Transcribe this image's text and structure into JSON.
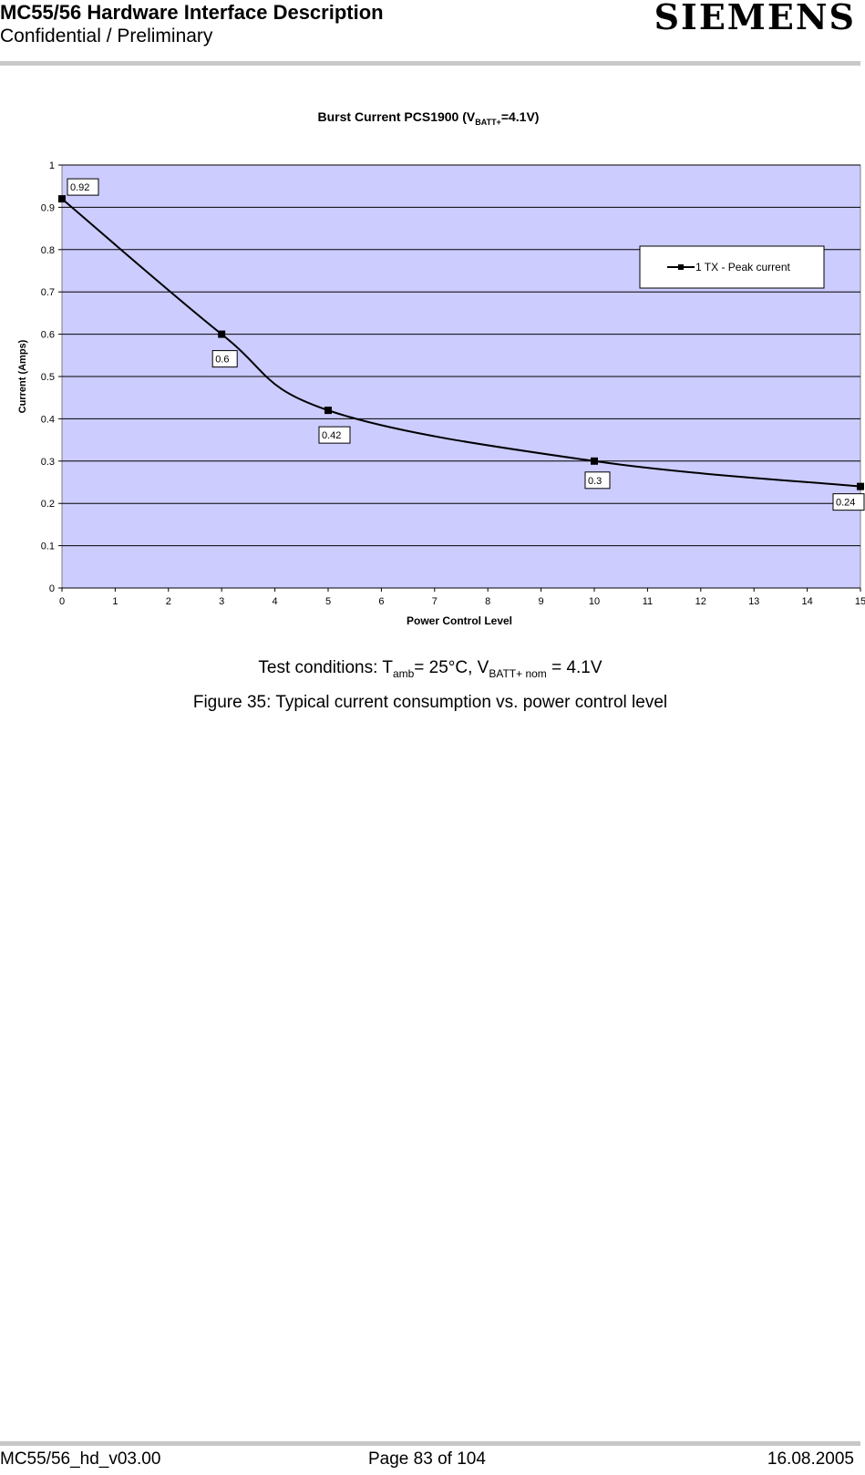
{
  "header": {
    "title": "MC55/56 Hardware Interface Description",
    "subtitle": "Confidential / Preliminary",
    "logo_text": "SIEMENS"
  },
  "chart_data": {
    "type": "line",
    "title_main": "Burst Current PCS1900 (V",
    "title_sub": "BATT+",
    "title_tail": "=4.1V)",
    "xlabel": "Power Control Level",
    "ylabel": "Current (Amps)",
    "xlim": [
      0,
      15
    ],
    "ylim": [
      0,
      1
    ],
    "x_ticks": [
      "0",
      "1",
      "2",
      "3",
      "4",
      "5",
      "6",
      "7",
      "8",
      "9",
      "10",
      "11",
      "12",
      "13",
      "14",
      "15"
    ],
    "y_ticks": [
      "0",
      "0.1",
      "0.2",
      "0.3",
      "0.4",
      "0.5",
      "0.6",
      "0.7",
      "0.8",
      "0.9",
      "1"
    ],
    "grid": true,
    "legend_position": "top-right",
    "plot_background": "#ccccff",
    "series": [
      {
        "name": "1 TX - Peak current",
        "x": [
          0,
          3,
          5,
          10,
          15
        ],
        "y": [
          0.92,
          0.6,
          0.42,
          0.3,
          0.24
        ],
        "labels": [
          "0.92",
          "0.6",
          "0.42",
          "0.3",
          "0.24"
        ]
      }
    ]
  },
  "caption": {
    "test_prefix": "Test conditions: T",
    "test_sub1": "amb",
    "test_mid": "= 25°C, V",
    "test_sub2": "BATT+ nom",
    "test_tail": " = 4.1V",
    "figure": "Figure 35: Typical current consumption vs. power control level"
  },
  "footer": {
    "doc_id": "MC55/56_hd_v03.00",
    "page": "Page 83 of 104",
    "date": "16.08.2005"
  }
}
